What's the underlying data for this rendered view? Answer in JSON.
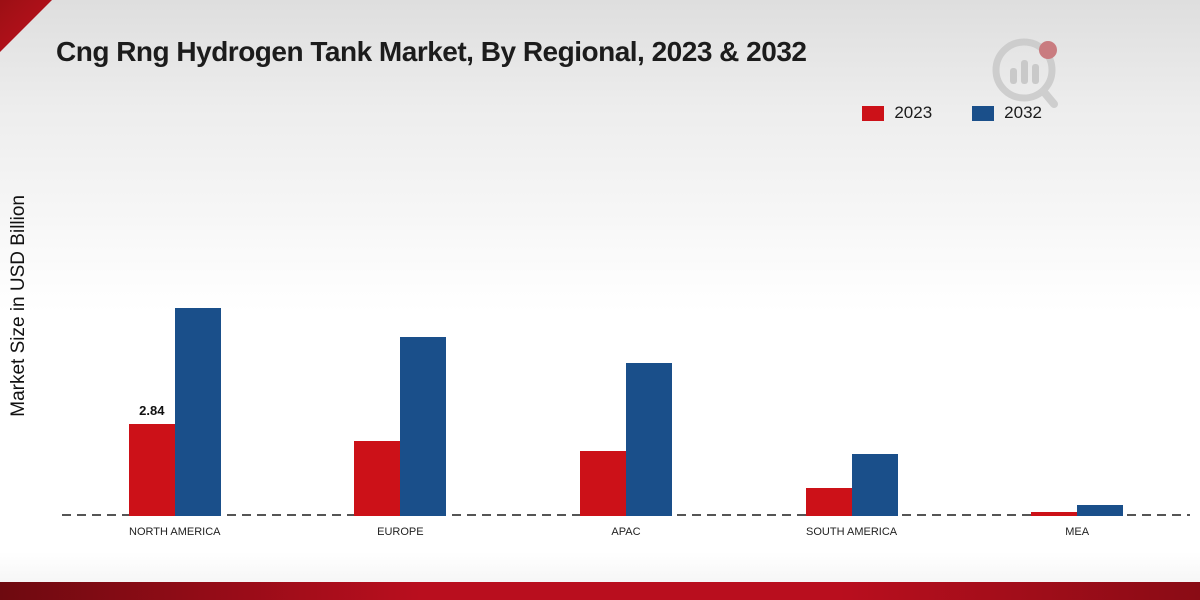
{
  "page": {
    "title": "Cng Rng Hydrogen Tank Market, By Regional, 2023 & 2032",
    "ylabel": "Market Size in USD Billion"
  },
  "legend": [
    {
      "label": "2023",
      "color": "#cc1118"
    },
    {
      "label": "2032",
      "color": "#1a4f8a"
    }
  ],
  "chart_data": {
    "type": "bar",
    "categories": [
      "NORTH AMERICA",
      "EUROPE",
      "APAC",
      "SOUTH AMERICA",
      "MEA"
    ],
    "series": [
      {
        "name": "2023",
        "color": "#cc1118",
        "values": [
          2.84,
          2.3,
          2.0,
          0.85,
          0.12
        ]
      },
      {
        "name": "2032",
        "color": "#1a4f8a",
        "values": [
          6.4,
          5.5,
          4.7,
          1.9,
          0.35
        ]
      }
    ],
    "data_labels": [
      {
        "series": "2023",
        "category": "NORTH AMERICA",
        "text": "2.84"
      }
    ],
    "ylabel": "Market Size in USD Billion",
    "xlabel": "",
    "ylim": [
      0,
      7
    ],
    "baseline_style": "dashed",
    "legend_position": "top-right",
    "grid": false
  }
}
